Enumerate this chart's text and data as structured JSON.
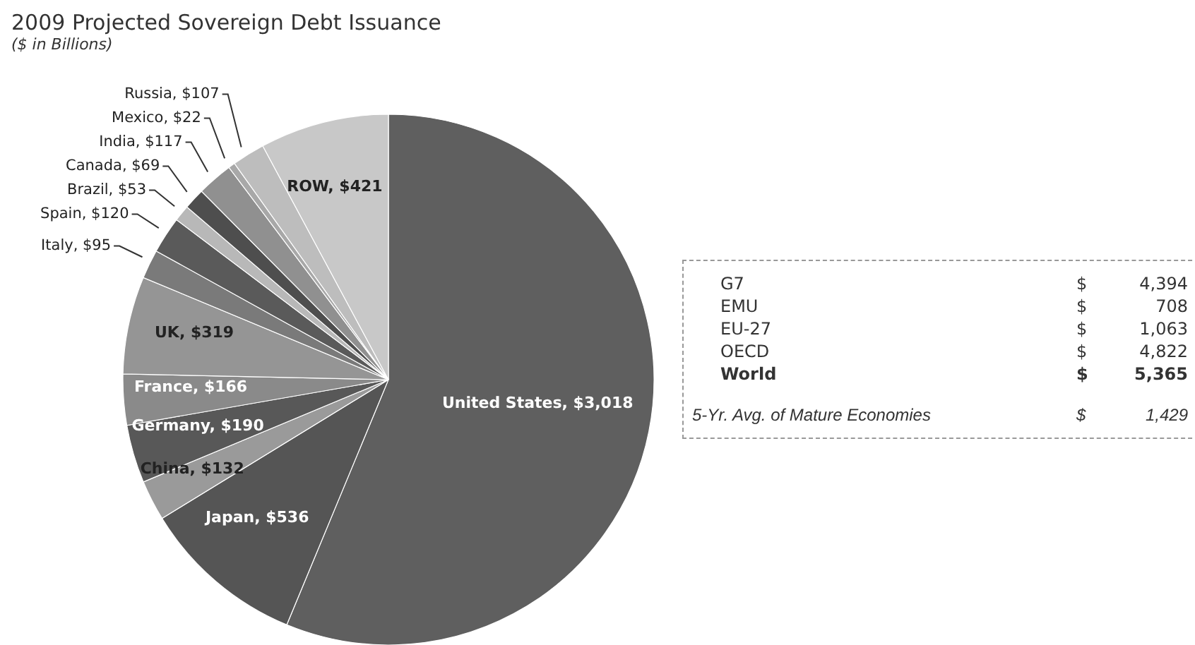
{
  "chart_data": {
    "type": "pie",
    "title": "2009 Projected Sovereign Debt Issuance",
    "subtitle": "($ in Billions)",
    "categories": [
      "United States",
      "Japan",
      "China",
      "Germany",
      "France",
      "UK",
      "Italy",
      "Spain",
      "Brazil",
      "Canada",
      "India",
      "Mexico",
      "Russia",
      "ROW"
    ],
    "values": [
      3018,
      536,
      132,
      190,
      166,
      319,
      95,
      120,
      53,
      69,
      117,
      22,
      107,
      421
    ],
    "value_labels": [
      "$3,018",
      "$536",
      "$132",
      "$190",
      "$166",
      "$319",
      "$95",
      "$120",
      "$53",
      "$69",
      "$117",
      "$22",
      "$107",
      "$421"
    ],
    "colors": [
      "#5f5f5f",
      "#555555",
      "#9a9a9a",
      "#585858",
      "#8a8a8a",
      "#959595",
      "#7a7a7a",
      "#5a5a5a",
      "#b8b8b8",
      "#4e4e4e",
      "#909090",
      "#a8a8a8",
      "#bdbdbd",
      "#c8c8c8"
    ],
    "legend": false,
    "annotations": [
      "G7",
      "$",
      "4,394",
      "EMU",
      "$",
      "708",
      "EU-27",
      "$",
      "1,063",
      "OECD",
      "$",
      "4,822",
      "World",
      "$",
      "5,365",
      "5-Yr. Avg. of Mature Economies",
      "$",
      "1,429"
    ]
  }
}
